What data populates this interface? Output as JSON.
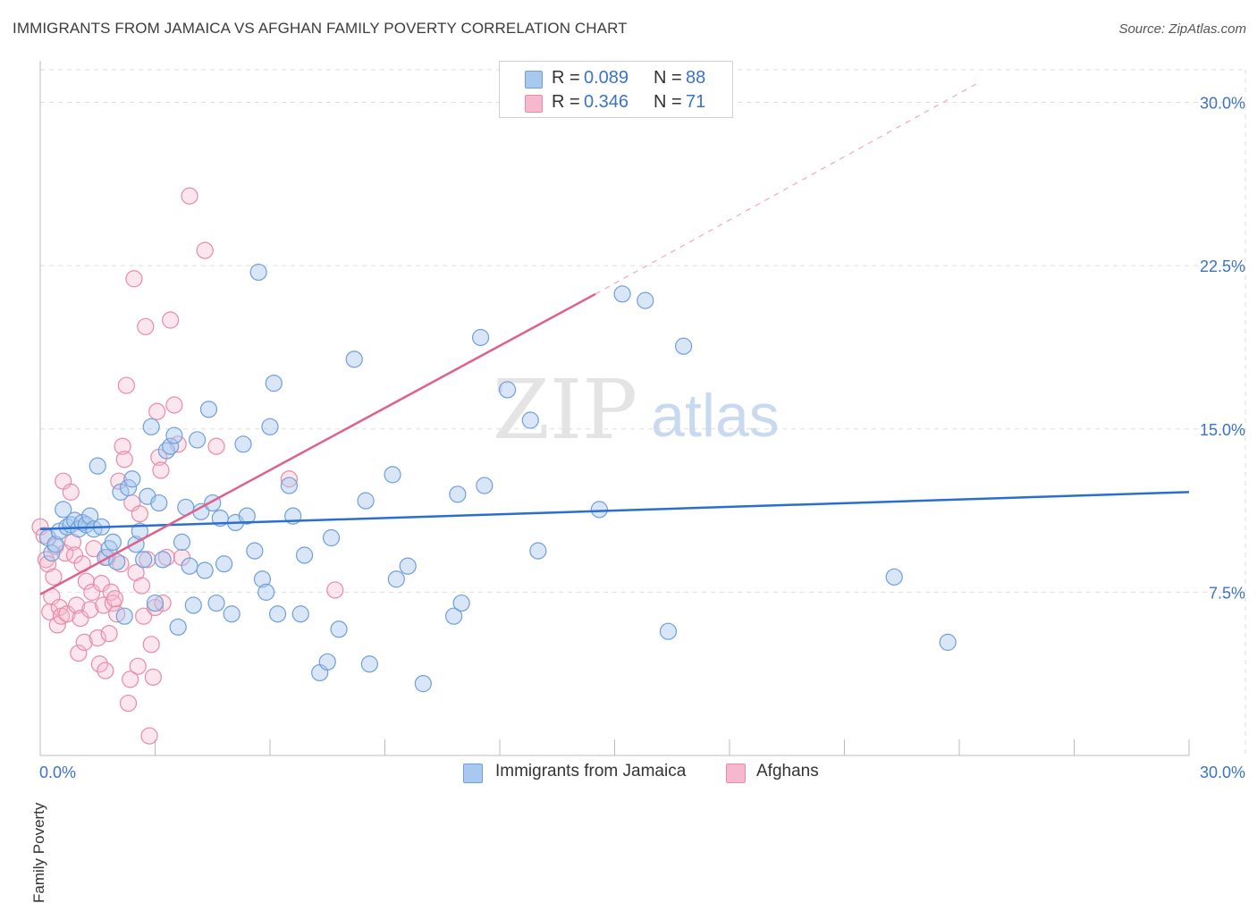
{
  "header": {
    "title": "IMMIGRANTS FROM JAMAICA VS AFGHAN FAMILY POVERTY CORRELATION CHART",
    "source": "Source: ZipAtlas.com"
  },
  "legend": {
    "r_label": "R =",
    "n_label": "N =",
    "rows": [
      {
        "r": "0.089",
        "n": "88"
      },
      {
        "r": "0.346",
        "n": "71"
      }
    ]
  },
  "watermark": {
    "zip": "ZIP",
    "atlas": "atlas"
  },
  "colors": {
    "blue_fill": "#a9c8f0",
    "blue_stroke": "#6f9fd8",
    "blue_line": "#2a6fcf",
    "pink_fill": "#f6b8cc",
    "pink_stroke": "#e88aa8",
    "pink_line": "#e0608c",
    "axis_text": "#3b73c8"
  },
  "chart_data": {
    "type": "scatter",
    "title": "IMMIGRANTS FROM JAMAICA VS AFGHAN FAMILY POVERTY CORRELATION CHART",
    "xlabel": "",
    "ylabel": "Family Poverty",
    "xlim": [
      0,
      30
    ],
    "ylim": [
      0,
      31.5
    ],
    "x_tick_labels": [
      "0.0%",
      "30.0%"
    ],
    "y_ticks": [
      7.5,
      15.0,
      22.5,
      30.0
    ],
    "y_tick_labels": [
      "7.5%",
      "15.0%",
      "22.5%",
      "30.0%"
    ],
    "grid": true,
    "series": [
      {
        "name": "Immigrants from Jamaica",
        "color": "blue",
        "R": 0.089,
        "N": 88,
        "trend": {
          "x": [
            0,
            30
          ],
          "y": [
            10.4,
            12.1
          ],
          "extended": false
        },
        "points": [
          [
            0.2,
            10.0
          ],
          [
            0.3,
            9.3
          ],
          [
            0.4,
            9.7
          ],
          [
            0.5,
            10.3
          ],
          [
            0.6,
            11.3
          ],
          [
            0.7,
            10.5
          ],
          [
            0.8,
            10.6
          ],
          [
            0.9,
            10.8
          ],
          [
            1.0,
            10.4
          ],
          [
            1.1,
            10.7
          ],
          [
            1.2,
            10.6
          ],
          [
            1.3,
            11.0
          ],
          [
            1.4,
            10.4
          ],
          [
            1.5,
            13.3
          ],
          [
            1.6,
            10.5
          ],
          [
            1.7,
            9.1
          ],
          [
            1.8,
            9.5
          ],
          [
            1.9,
            9.8
          ],
          [
            2.0,
            8.9
          ],
          [
            2.1,
            12.1
          ],
          [
            2.2,
            6.4
          ],
          [
            2.3,
            12.3
          ],
          [
            2.4,
            12.7
          ],
          [
            2.5,
            9.7
          ],
          [
            2.6,
            10.3
          ],
          [
            2.7,
            9.0
          ],
          [
            2.8,
            11.9
          ],
          [
            2.9,
            15.1
          ],
          [
            3.0,
            7.0
          ],
          [
            3.1,
            11.6
          ],
          [
            3.2,
            9.0
          ],
          [
            3.3,
            14.0
          ],
          [
            3.4,
            14.2
          ],
          [
            3.5,
            14.7
          ],
          [
            3.6,
            5.9
          ],
          [
            3.7,
            9.8
          ],
          [
            3.8,
            11.4
          ],
          [
            3.9,
            8.7
          ],
          [
            4.0,
            6.9
          ],
          [
            4.1,
            14.5
          ],
          [
            4.2,
            11.2
          ],
          [
            4.3,
            8.5
          ],
          [
            4.4,
            15.9
          ],
          [
            4.5,
            11.6
          ],
          [
            4.6,
            7.0
          ],
          [
            4.7,
            10.9
          ],
          [
            4.8,
            8.8
          ],
          [
            5.0,
            6.5
          ],
          [
            5.1,
            10.7
          ],
          [
            5.3,
            14.3
          ],
          [
            5.4,
            11.0
          ],
          [
            5.6,
            9.4
          ],
          [
            5.7,
            22.2
          ],
          [
            5.8,
            8.1
          ],
          [
            5.9,
            7.5
          ],
          [
            6.0,
            15.1
          ],
          [
            6.1,
            17.1
          ],
          [
            6.2,
            6.5
          ],
          [
            6.5,
            12.4
          ],
          [
            6.6,
            11.0
          ],
          [
            6.8,
            6.5
          ],
          [
            6.9,
            9.2
          ],
          [
            7.3,
            3.8
          ],
          [
            7.5,
            4.3
          ],
          [
            7.6,
            10.0
          ],
          [
            7.8,
            5.8
          ],
          [
            8.2,
            18.2
          ],
          [
            8.5,
            11.7
          ],
          [
            8.6,
            4.2
          ],
          [
            9.2,
            12.9
          ],
          [
            9.3,
            8.1
          ],
          [
            9.6,
            8.7
          ],
          [
            10.0,
            3.3
          ],
          [
            10.8,
            6.4
          ],
          [
            10.9,
            12.0
          ],
          [
            11.0,
            7.0
          ],
          [
            11.5,
            19.2
          ],
          [
            11.6,
            12.4
          ],
          [
            12.2,
            16.8
          ],
          [
            12.8,
            15.4
          ],
          [
            13.0,
            9.4
          ],
          [
            14.6,
            11.3
          ],
          [
            15.2,
            21.2
          ],
          [
            15.8,
            20.9
          ],
          [
            16.4,
            5.7
          ],
          [
            16.8,
            18.8
          ],
          [
            22.3,
            8.2
          ],
          [
            23.7,
            5.2
          ]
        ]
      },
      {
        "name": "Afghans",
        "color": "pink",
        "R": 0.346,
        "N": 71,
        "trend": {
          "x": [
            0,
            14.5
          ],
          "y": [
            7.4,
            21.2
          ],
          "extended_to": [
            24.5,
            30.9
          ]
        },
        "points": [
          [
            0.0,
            10.5
          ],
          [
            0.1,
            10.1
          ],
          [
            0.15,
            9.0
          ],
          [
            0.2,
            8.8
          ],
          [
            0.25,
            6.6
          ],
          [
            0.3,
            7.3
          ],
          [
            0.35,
            8.2
          ],
          [
            0.4,
            9.6
          ],
          [
            0.45,
            6.0
          ],
          [
            0.5,
            6.8
          ],
          [
            0.55,
            6.4
          ],
          [
            0.6,
            12.6
          ],
          [
            0.65,
            9.3
          ],
          [
            0.7,
            6.5
          ],
          [
            0.8,
            12.1
          ],
          [
            0.85,
            9.8
          ],
          [
            0.9,
            9.2
          ],
          [
            0.95,
            6.9
          ],
          [
            1.0,
            4.7
          ],
          [
            1.05,
            6.3
          ],
          [
            1.1,
            8.8
          ],
          [
            1.15,
            5.2
          ],
          [
            1.2,
            8.0
          ],
          [
            1.3,
            6.7
          ],
          [
            1.35,
            7.5
          ],
          [
            1.4,
            9.5
          ],
          [
            1.5,
            5.4
          ],
          [
            1.55,
            4.2
          ],
          [
            1.6,
            7.9
          ],
          [
            1.65,
            6.9
          ],
          [
            1.7,
            3.9
          ],
          [
            1.75,
            9.1
          ],
          [
            1.8,
            5.6
          ],
          [
            1.85,
            7.5
          ],
          [
            1.9,
            7.0
          ],
          [
            1.95,
            7.2
          ],
          [
            2.0,
            6.5
          ],
          [
            2.05,
            12.6
          ],
          [
            2.1,
            8.8
          ],
          [
            2.15,
            14.2
          ],
          [
            2.2,
            13.6
          ],
          [
            2.25,
            17.0
          ],
          [
            2.3,
            2.4
          ],
          [
            2.35,
            3.5
          ],
          [
            2.4,
            11.6
          ],
          [
            2.45,
            21.9
          ],
          [
            2.5,
            8.4
          ],
          [
            2.55,
            4.1
          ],
          [
            2.6,
            11.1
          ],
          [
            2.65,
            7.8
          ],
          [
            2.7,
            6.4
          ],
          [
            2.75,
            19.7
          ],
          [
            2.8,
            9.0
          ],
          [
            2.85,
            0.9
          ],
          [
            2.9,
            5.1
          ],
          [
            2.95,
            3.6
          ],
          [
            3.0,
            6.8
          ],
          [
            3.05,
            15.8
          ],
          [
            3.1,
            13.7
          ],
          [
            3.15,
            13.1
          ],
          [
            3.2,
            7.0
          ],
          [
            3.3,
            9.1
          ],
          [
            3.4,
            20.0
          ],
          [
            3.5,
            16.1
          ],
          [
            3.6,
            14.3
          ],
          [
            3.7,
            9.1
          ],
          [
            3.9,
            25.7
          ],
          [
            4.3,
            23.2
          ],
          [
            4.6,
            14.2
          ],
          [
            6.5,
            12.7
          ],
          [
            7.7,
            7.6
          ]
        ]
      }
    ]
  },
  "bottom_legend": [
    {
      "label": "Immigrants from Jamaica"
    },
    {
      "label": "Afghans"
    }
  ]
}
